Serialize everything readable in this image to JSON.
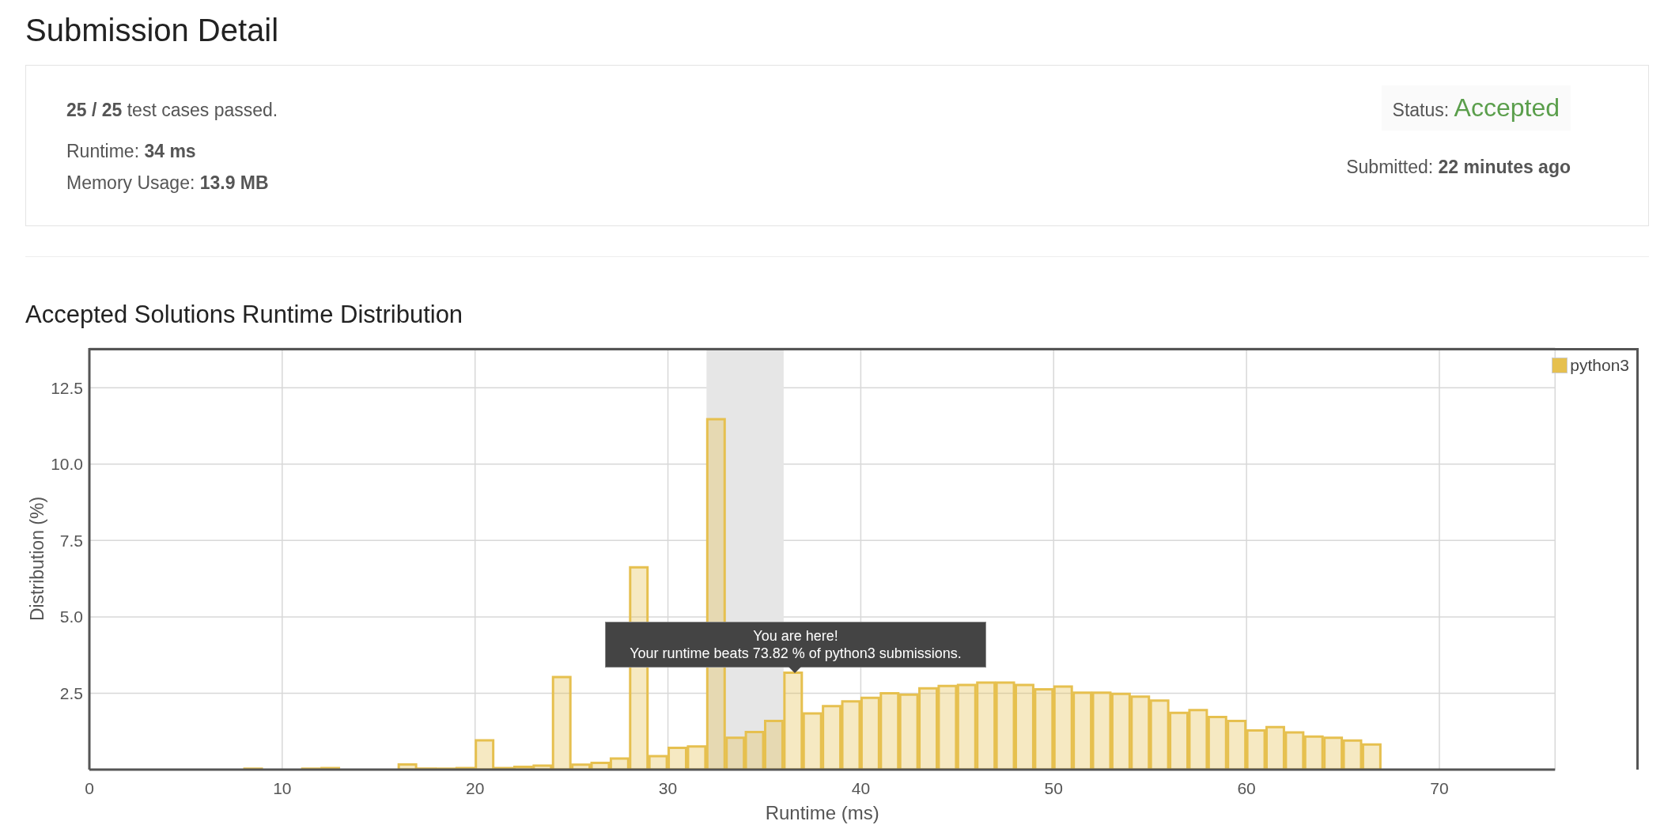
{
  "chart_data": {
    "type": "histogram",
    "title": "Accepted Solutions Runtime Distribution",
    "xlabel": "Runtime (ms)",
    "ylabel": "Distribution (%)",
    "bins": [
      8,
      9,
      10,
      11,
      12,
      13,
      14,
      15,
      16,
      17,
      18,
      19,
      20,
      21,
      22,
      23,
      24,
      25,
      26,
      27,
      28,
      29,
      30,
      31,
      32,
      33,
      34,
      35,
      36,
      37,
      38,
      39,
      40,
      41,
      42,
      43,
      44,
      45,
      46,
      47,
      48,
      49,
      50,
      51,
      52,
      53,
      54,
      55,
      56,
      57,
      58,
      59,
      60,
      61,
      62,
      63,
      64,
      65,
      66,
      67
    ],
    "series": [
      {
        "name": "python3",
        "color": "#e6c04f",
        "values": [
          0.03,
          0,
          0,
          0.03,
          0.05,
          0,
          0,
          0,
          0.17,
          0.03,
          0.03,
          0.05,
          0.96,
          0.05,
          0.09,
          0.13,
          3.03,
          0.16,
          0.22,
          0.36,
          6.62,
          0.44,
          0.71,
          0.76,
          11.47,
          1.04,
          1.23,
          1.59,
          3.17,
          1.84,
          2.08,
          2.23,
          2.35,
          2.5,
          2.45,
          2.66,
          2.74,
          2.77,
          2.85,
          2.85,
          2.77,
          2.63,
          2.72,
          2.52,
          2.52,
          2.48,
          2.39,
          2.26,
          1.86,
          1.95,
          1.72,
          1.59,
          1.28,
          1.39,
          1.22,
          1.08,
          1.04,
          0.95,
          0.82
        ]
      }
    ],
    "xlim": [
      0,
      76
    ],
    "xticks": [
      0,
      10,
      20,
      30,
      40,
      50,
      60,
      70
    ],
    "ylim": [
      0,
      13.8
    ],
    "yticks": [
      {
        "value": 2.5,
        "label": "2.5"
      },
      {
        "value": 5,
        "label": "5.0"
      },
      {
        "value": 7.5,
        "label": "7.5"
      },
      {
        "value": 10,
        "label": "10.0"
      },
      {
        "value": 12.5,
        "label": "12.5"
      }
    ],
    "bands": [
      {
        "axis": "x",
        "from": 32,
        "to": 36,
        "color": "#e6e6e6"
      }
    ],
    "grid": true,
    "legend": "top right",
    "annotations": [
      "Submission Detail",
      "25 / 25 test cases passed.",
      "Runtime: 34 ms",
      "Memory Usage: 13.9 MB",
      "Status: Accepted",
      "Submitted: 22 minutes ago",
      "You are here!\nYour runtime beats 73.82 % of python3 submissions."
    ]
  }
}
